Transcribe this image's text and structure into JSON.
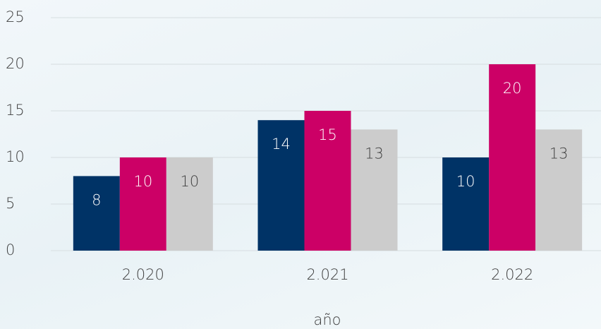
{
  "chart_data": {
    "type": "bar",
    "x_label": "año",
    "categories": [
      "2.020",
      "2.021",
      "2.022"
    ],
    "series": [
      {
        "color": "#003366",
        "values": [
          8,
          14,
          10
        ]
      },
      {
        "color": "#cc0066",
        "values": [
          10,
          15,
          20
        ]
      },
      {
        "color": "#cccccc",
        "values": [
          10,
          13,
          13
        ]
      }
    ],
    "ylim": [
      0,
      25
    ],
    "yticks": [
      0,
      5,
      10,
      15,
      20,
      25
    ],
    "grid": true,
    "data_labels": true
  }
}
